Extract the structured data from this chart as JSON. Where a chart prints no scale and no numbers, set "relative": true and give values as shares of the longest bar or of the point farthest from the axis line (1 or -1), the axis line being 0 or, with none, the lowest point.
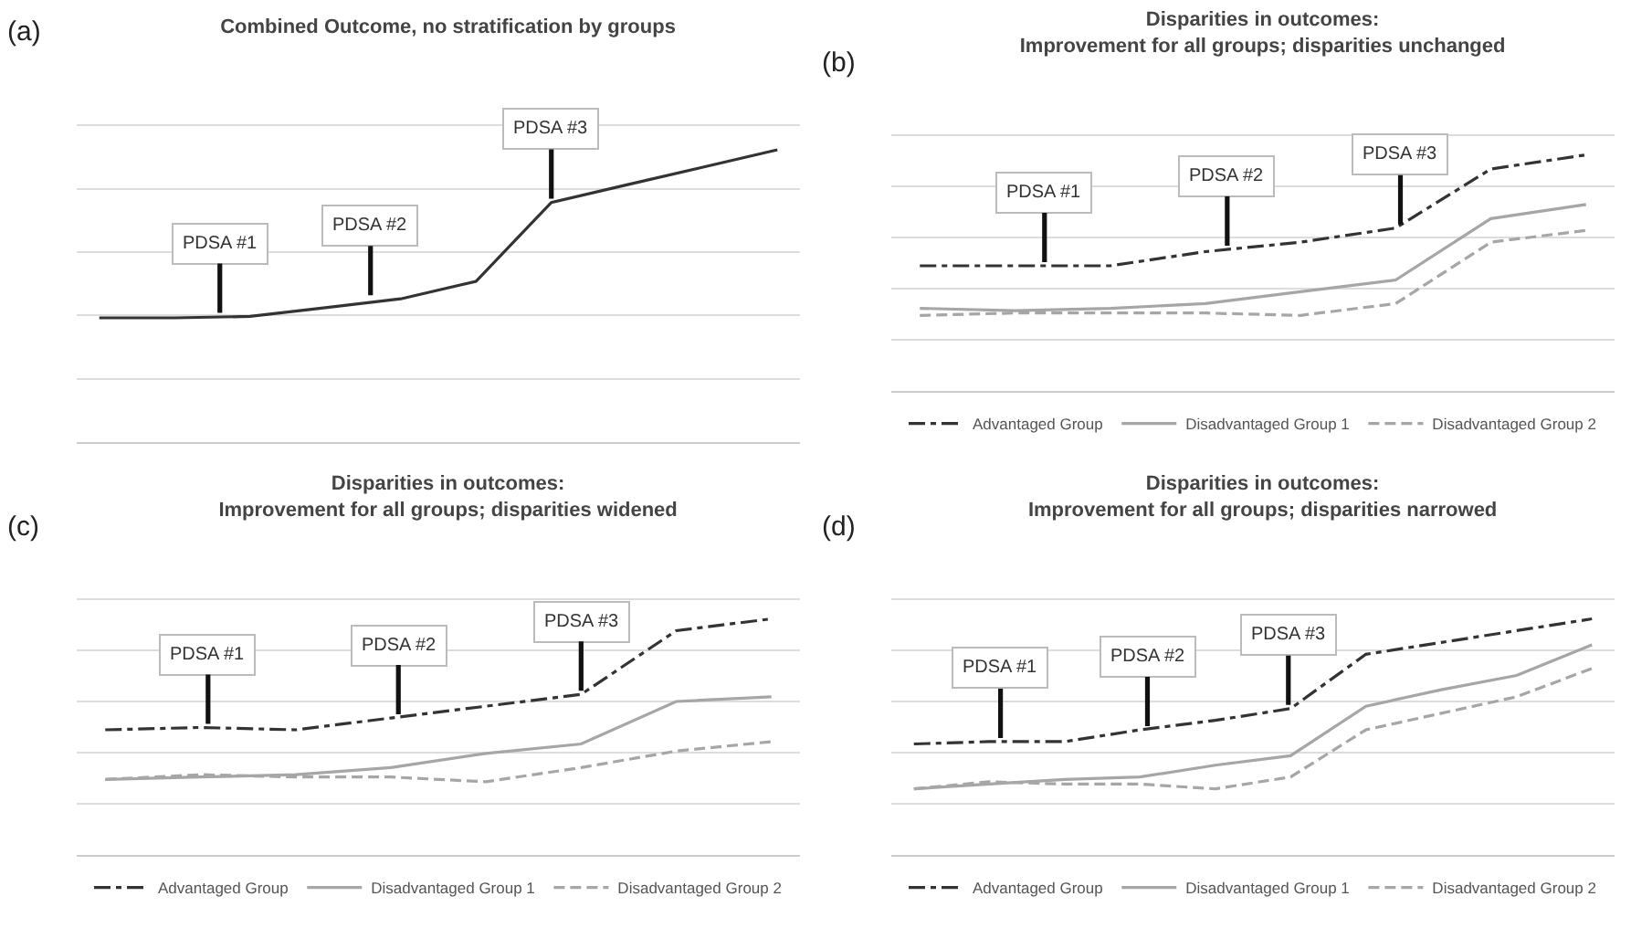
{
  "chart_data": [
    {
      "type": "line",
      "title": "Combined Outcome, no stratification by groups",
      "relative": true,
      "grid": "y",
      "legend": false,
      "categories": [
        null,
        null,
        null,
        null,
        null,
        null,
        null,
        null,
        null,
        null
      ],
      "series": [
        {
          "color": "#333333",
          "line_style": "solid",
          "values": [
            0.425,
            0.425,
            0.43,
            0.46,
            0.49,
            0.55,
            0.82,
            0.88,
            0.94,
            1.0
          ]
        }
      ],
      "annotations": [
        "(a)",
        {
          "text": "PDSA #1",
          "y": 0.43
        },
        {
          "text": "PDSA #2",
          "y": 0.49
        },
        {
          "text": "PDSA #3",
          "y": 0.82
        }
      ]
    },
    {
      "type": "line",
      "title": "Disparities in outcomes:",
      "subtitle": "Improvement for all groups; disparities unchanged",
      "relative": true,
      "grid": "y",
      "legend": "bottom",
      "categories": [
        null,
        null,
        null,
        null,
        null,
        null,
        null,
        null
      ],
      "series": [
        {
          "name": "Advantaged Group",
          "color": "#333333",
          "line_style": "dashdot",
          "values": [
            0.53,
            0.53,
            0.53,
            0.59,
            0.63,
            0.69,
            0.94,
            1.0
          ]
        },
        {
          "name": "Disadvantaged Group 1",
          "color": "#a6a6a6",
          "line_style": "solid",
          "values": [
            0.35,
            0.34,
            0.35,
            0.37,
            0.42,
            0.47,
            0.73,
            0.79
          ]
        },
        {
          "name": "Disadvantaged Group 2",
          "color": "#a6a6a6",
          "line_style": "dashed",
          "values": [
            0.32,
            0.33,
            0.33,
            0.33,
            0.32,
            0.37,
            0.63,
            0.68
          ]
        }
      ],
      "annotations": [
        "(b)",
        {
          "text": "PDSA #1",
          "y": 0.53
        },
        {
          "text": "PDSA #2",
          "y": 0.6
        },
        {
          "text": "PDSA #3",
          "y": 0.69
        }
      ]
    },
    {
      "type": "line",
      "title": "Disparities in outcomes:",
      "subtitle": "Improvement for all groups; disparities widened",
      "relative": true,
      "grid": "y",
      "legend": "bottom",
      "categories": [
        null,
        null,
        null,
        null,
        null,
        null,
        null,
        null
      ],
      "series": [
        {
          "name": "Advantaged Group",
          "color": "#333333",
          "line_style": "dashdot",
          "values": [
            0.53,
            0.54,
            0.53,
            0.58,
            0.63,
            0.68,
            0.95,
            1.0
          ]
        },
        {
          "name": "Disadvantaged Group 1",
          "color": "#a6a6a6",
          "line_style": "solid",
          "values": [
            0.32,
            0.33,
            0.34,
            0.37,
            0.43,
            0.47,
            0.65,
            0.67
          ]
        },
        {
          "name": "Disadvantaged Group 2",
          "color": "#a6a6a6",
          "line_style": "dashed",
          "values": [
            0.32,
            0.34,
            0.33,
            0.33,
            0.31,
            0.37,
            0.44,
            0.48
          ]
        }
      ],
      "annotations": [
        "(c)",
        {
          "text": "PDSA #1",
          "y": 0.54
        },
        {
          "text": "PDSA #2",
          "y": 0.58
        },
        {
          "text": "PDSA #3",
          "y": 0.68
        }
      ]
    },
    {
      "type": "line",
      "title": "Disparities in outcomes:",
      "subtitle": "Improvement for all groups; disparities narrowed",
      "relative": true,
      "grid": "y",
      "legend": "bottom",
      "categories": [
        null,
        null,
        null,
        null,
        null,
        null,
        null,
        null,
        null,
        null
      ],
      "series": [
        {
          "name": "Advantaged Group",
          "color": "#333333",
          "line_style": "dashdot",
          "values": [
            0.47,
            0.48,
            0.48,
            0.53,
            0.57,
            0.62,
            0.85,
            0.9,
            0.95,
            1.0
          ]
        },
        {
          "name": "Disadvantaged Group 1",
          "color": "#a6a6a6",
          "line_style": "solid",
          "values": [
            0.28,
            0.3,
            0.32,
            0.33,
            0.38,
            0.42,
            0.63,
            0.7,
            0.76,
            0.89
          ]
        },
        {
          "name": "Disadvantaged Group 2",
          "color": "#a6a6a6",
          "line_style": "dashed",
          "values": [
            0.28,
            0.31,
            0.3,
            0.3,
            0.28,
            0.33,
            0.53,
            0.6,
            0.67,
            0.79
          ]
        }
      ],
      "annotations": [
        "(d)",
        {
          "text": "PDSA #1",
          "y": 0.48
        },
        {
          "text": "PDSA #2",
          "y": 0.53
        },
        {
          "text": "PDSA #3",
          "y": 0.62
        }
      ]
    }
  ]
}
